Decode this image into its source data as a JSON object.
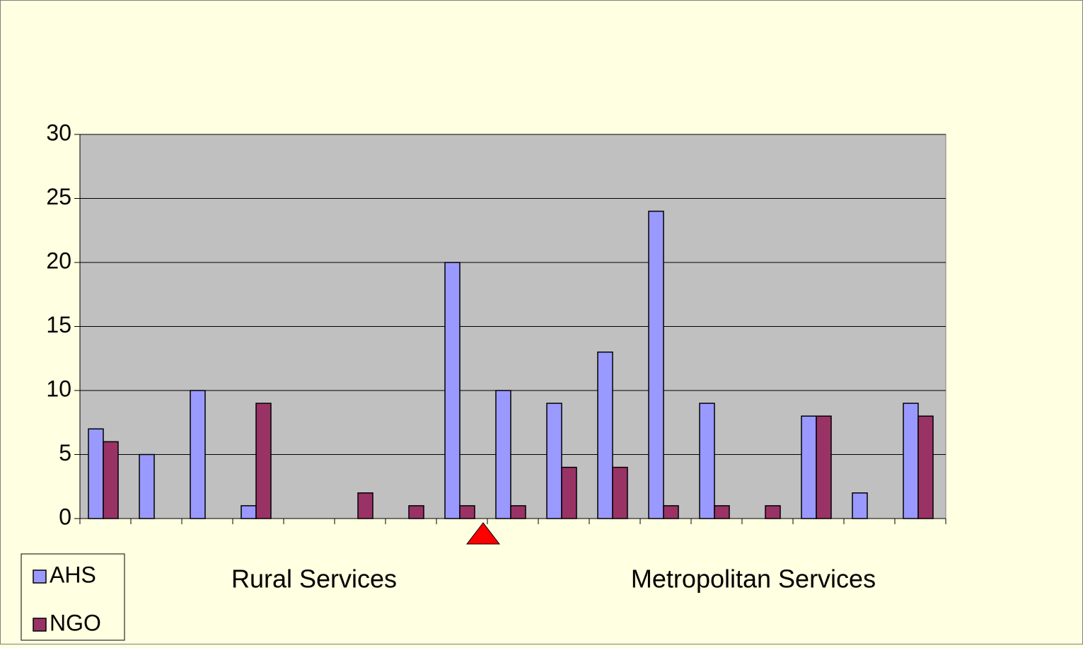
{
  "chart_data": {
    "type": "bar",
    "categories": [
      null,
      null,
      null,
      null,
      null,
      null,
      null,
      null,
      null,
      null,
      null,
      null,
      null,
      null,
      null,
      null,
      null
    ],
    "series": [
      {
        "name": "AHS",
        "color": "#9999ff",
        "values": [
          7,
          5,
          10,
          1,
          0,
          0,
          0,
          20,
          10,
          9,
          13,
          24,
          9,
          0,
          8,
          2,
          9
        ]
      },
      {
        "name": "NGO",
        "color": "#993366",
        "values": [
          6,
          0,
          0,
          9,
          0,
          2,
          1,
          1,
          1,
          4,
          4,
          1,
          1,
          1,
          8,
          0,
          8
        ]
      }
    ],
    "ylim": [
      0,
      30
    ],
    "yticks": [
      0,
      5,
      10,
      15,
      20,
      25,
      30
    ],
    "grid": true,
    "annotations": [
      "Rural Services",
      "Metropolitan Services"
    ],
    "legend": "bottom-left"
  }
}
